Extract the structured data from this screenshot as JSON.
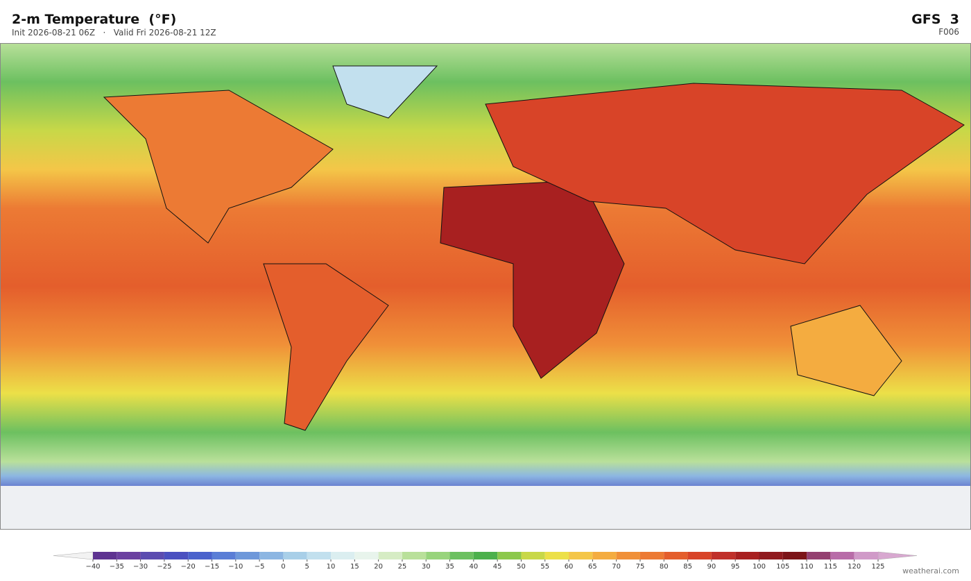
{
  "header": {
    "title": "2-m Temperature  (°F)",
    "subtitle": "Init 2026-08-21 06Z   ·   Valid Fri 2026-08-21 12Z",
    "model": "GFS  3",
    "forecast_hour": "F006"
  },
  "colorbar": {
    "ticks": [
      {
        "value": -40,
        "label": "−40"
      },
      {
        "value": -35,
        "label": "−35"
      },
      {
        "value": -30,
        "label": "−30"
      },
      {
        "value": -25,
        "label": "−25"
      },
      {
        "value": -20,
        "label": "−20"
      },
      {
        "value": -15,
        "label": "−15"
      },
      {
        "value": -10,
        "label": "−10"
      },
      {
        "value": -5,
        "label": "−5"
      },
      0,
      5,
      10,
      15,
      20,
      25,
      30,
      35,
      40,
      45,
      50,
      55,
      60,
      65,
      70,
      75,
      80,
      85,
      90,
      95,
      100,
      105,
      110,
      115,
      120,
      125
    ],
    "colors": [
      "#5e3391",
      "#6b40a0",
      "#5b4cb0",
      "#4a50c0",
      "#4a62cc",
      "#5a7ed6",
      "#6e98da",
      "#8cb6e2",
      "#a8cfe8",
      "#c2e0ee",
      "#dbeef0",
      "#e8f4ec",
      "#d6ecc4",
      "#b9e09a",
      "#98d47c",
      "#6cc060",
      "#4cb04c",
      "#8cc84c",
      "#c8d848",
      "#ece048",
      "#f4c648",
      "#f4ac40",
      "#f09038",
      "#ec7a34",
      "#e45e2c",
      "#d84428",
      "#c0302a",
      "#a82020",
      "#901a1e",
      "#7c1418",
      "#944070",
      "#b86ca8",
      "#d09ac8"
    ],
    "under_color": "#f2f2f2",
    "over_color": "#d8a8d0"
  },
  "footer": {
    "credit": "weatherai.com"
  }
}
